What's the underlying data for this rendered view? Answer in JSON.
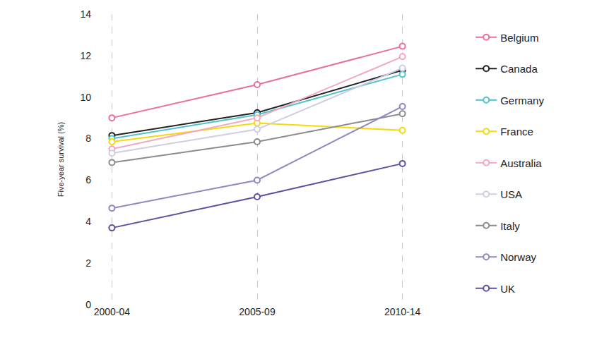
{
  "chart_data": {
    "type": "line",
    "y_label": "Five-year survival (%)",
    "categories": [
      "2000-04",
      "2005-09",
      "2010-14"
    ],
    "ylim": [
      0,
      14
    ],
    "yticks": [
      0,
      2,
      4,
      6,
      8,
      10,
      12,
      14
    ],
    "grid": "x",
    "legend": "right",
    "marker": "open-circle",
    "series": [
      {
        "name": "Belgium",
        "color": "#e8709a",
        "values": [
          9.0,
          10.6,
          12.45
        ]
      },
      {
        "name": "Canada",
        "color": "#222222",
        "values": [
          8.15,
          9.25,
          11.3
        ]
      },
      {
        "name": "Germany",
        "color": "#4ec3cc",
        "values": [
          8.0,
          9.15,
          11.1
        ]
      },
      {
        "name": "France",
        "color": "#f5d90a",
        "values": [
          7.85,
          8.75,
          8.4
        ]
      },
      {
        "name": "Australia",
        "color": "#f4a6be",
        "values": [
          7.5,
          9.0,
          11.95
        ]
      },
      {
        "name": "USA",
        "color": "#cfcde6",
        "values": [
          7.3,
          8.45,
          11.4
        ]
      },
      {
        "name": "Italy",
        "color": "#8c8c8c",
        "values": [
          6.85,
          7.85,
          9.2
        ]
      },
      {
        "name": "Norway",
        "color": "#8e88c2",
        "values": [
          4.65,
          6.0,
          9.55
        ]
      },
      {
        "name": "UK",
        "color": "#5a52a0",
        "values": [
          3.7,
          5.2,
          6.8
        ]
      }
    ]
  }
}
